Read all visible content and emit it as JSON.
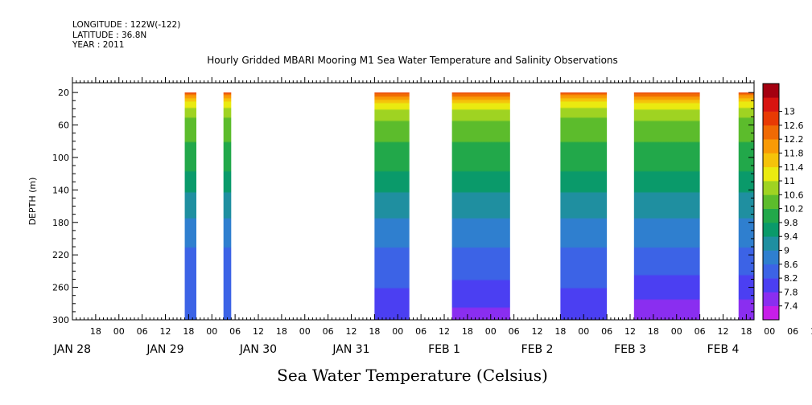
{
  "header": {
    "longitude": "LONGITUDE : 122W(-122)",
    "latitude": "LATITUDE : 36.8N",
    "year": "YEAR : 2011"
  },
  "chart_title": "Hourly Gridded MBARI Mooring M1 Sea Water Temperature and Salinity Observations",
  "variable_title": "Sea Water Temperature (Celsius)",
  "chart_data": {
    "type": "heatmap",
    "title": "Hourly Gridded MBARI Mooring M1 Sea Water Temperature and Salinity Observations",
    "xlabel": "",
    "ylabel": "DEPTH (m)",
    "colorbar_label": "Sea Water Temperature (Celsius)",
    "x_unit": "hour",
    "xlim": [
      "JAN 28 12:00",
      "FEB 4 20:00"
    ],
    "ylim": [
      300,
      8
    ],
    "y_reversed": true,
    "x_hour_ticks": [
      "18",
      "00",
      "06",
      "12",
      "18",
      "00",
      "06",
      "12",
      "18",
      "00",
      "06",
      "12",
      "18",
      "00",
      "06",
      "12",
      "18",
      "00",
      "06",
      "12",
      "18",
      "00",
      "06",
      "12",
      "18",
      "00",
      "06",
      "12",
      "18",
      "00",
      "06",
      "12",
      "18"
    ],
    "x_date_labels": [
      "JAN 28",
      "JAN 29",
      "JAN 30",
      "JAN 31",
      "FEB  1",
      "FEB  2",
      "FEB  3",
      "FEB  4"
    ],
    "y_ticks": [
      20,
      60,
      100,
      140,
      180,
      220,
      260,
      300
    ],
    "colorbar_levels": [
      7.4,
      7.8,
      8.2,
      8.6,
      9,
      9.4,
      9.8,
      10.2,
      10.6,
      11,
      11.4,
      11.8,
      12.2,
      12.6,
      13
    ],
    "colorbar_colors": [
      "#c71ee8",
      "#8a2ef0",
      "#4b3ff2",
      "#3c63e6",
      "#2f7fcf",
      "#1f8fa0",
      "#0a9a6a",
      "#22a84a",
      "#5cbc2c",
      "#9fd322",
      "#eaea10",
      "#f5c30a",
      "#f89a06",
      "#f06a04",
      "#e83a04",
      "#d81410",
      "#a40010"
    ],
    "observed_periods": [
      {
        "start": "JAN 29 17:00",
        "end": "JAN 29 20:00",
        "surface_temp": 12.6,
        "bottom_temp": 8.2
      },
      {
        "start": "JAN 30 03:00",
        "end": "JAN 30 05:00",
        "surface_temp": 12.6,
        "bottom_temp": 8.2
      },
      {
        "start": "JAN 31 18:00",
        "end": "FEB  1 03:00",
        "surface_temp": 12.8,
        "bottom_temp": 7.8
      },
      {
        "start": "FEB  1 14:00",
        "end": "FEB  2 05:00",
        "surface_temp": 12.8,
        "bottom_temp": 7.6
      },
      {
        "start": "FEB  2 18:00",
        "end": "FEB  3 06:00",
        "surface_temp": 12.6,
        "bottom_temp": 7.8
      },
      {
        "start": "FEB  3 13:00",
        "end": "FEB  4 06:00",
        "surface_temp": 12.8,
        "bottom_temp": 7.4
      },
      {
        "start": "FEB  4 16:00",
        "end": "FEB  4 20:00",
        "surface_temp": 12.6,
        "bottom_temp": 7.4
      }
    ],
    "profile": [
      {
        "depth": 20,
        "temp": 12.8
      },
      {
        "depth": 30,
        "temp": 11.6
      },
      {
        "depth": 45,
        "temp": 10.8
      },
      {
        "depth": 70,
        "temp": 10.3
      },
      {
        "depth": 110,
        "temp": 9.9
      },
      {
        "depth": 150,
        "temp": 9.3
      },
      {
        "depth": 190,
        "temp": 8.8
      },
      {
        "depth": 230,
        "temp": 8.4
      },
      {
        "depth": 270,
        "temp": 8.0
      },
      {
        "depth": 300,
        "temp": 7.6
      }
    ]
  }
}
